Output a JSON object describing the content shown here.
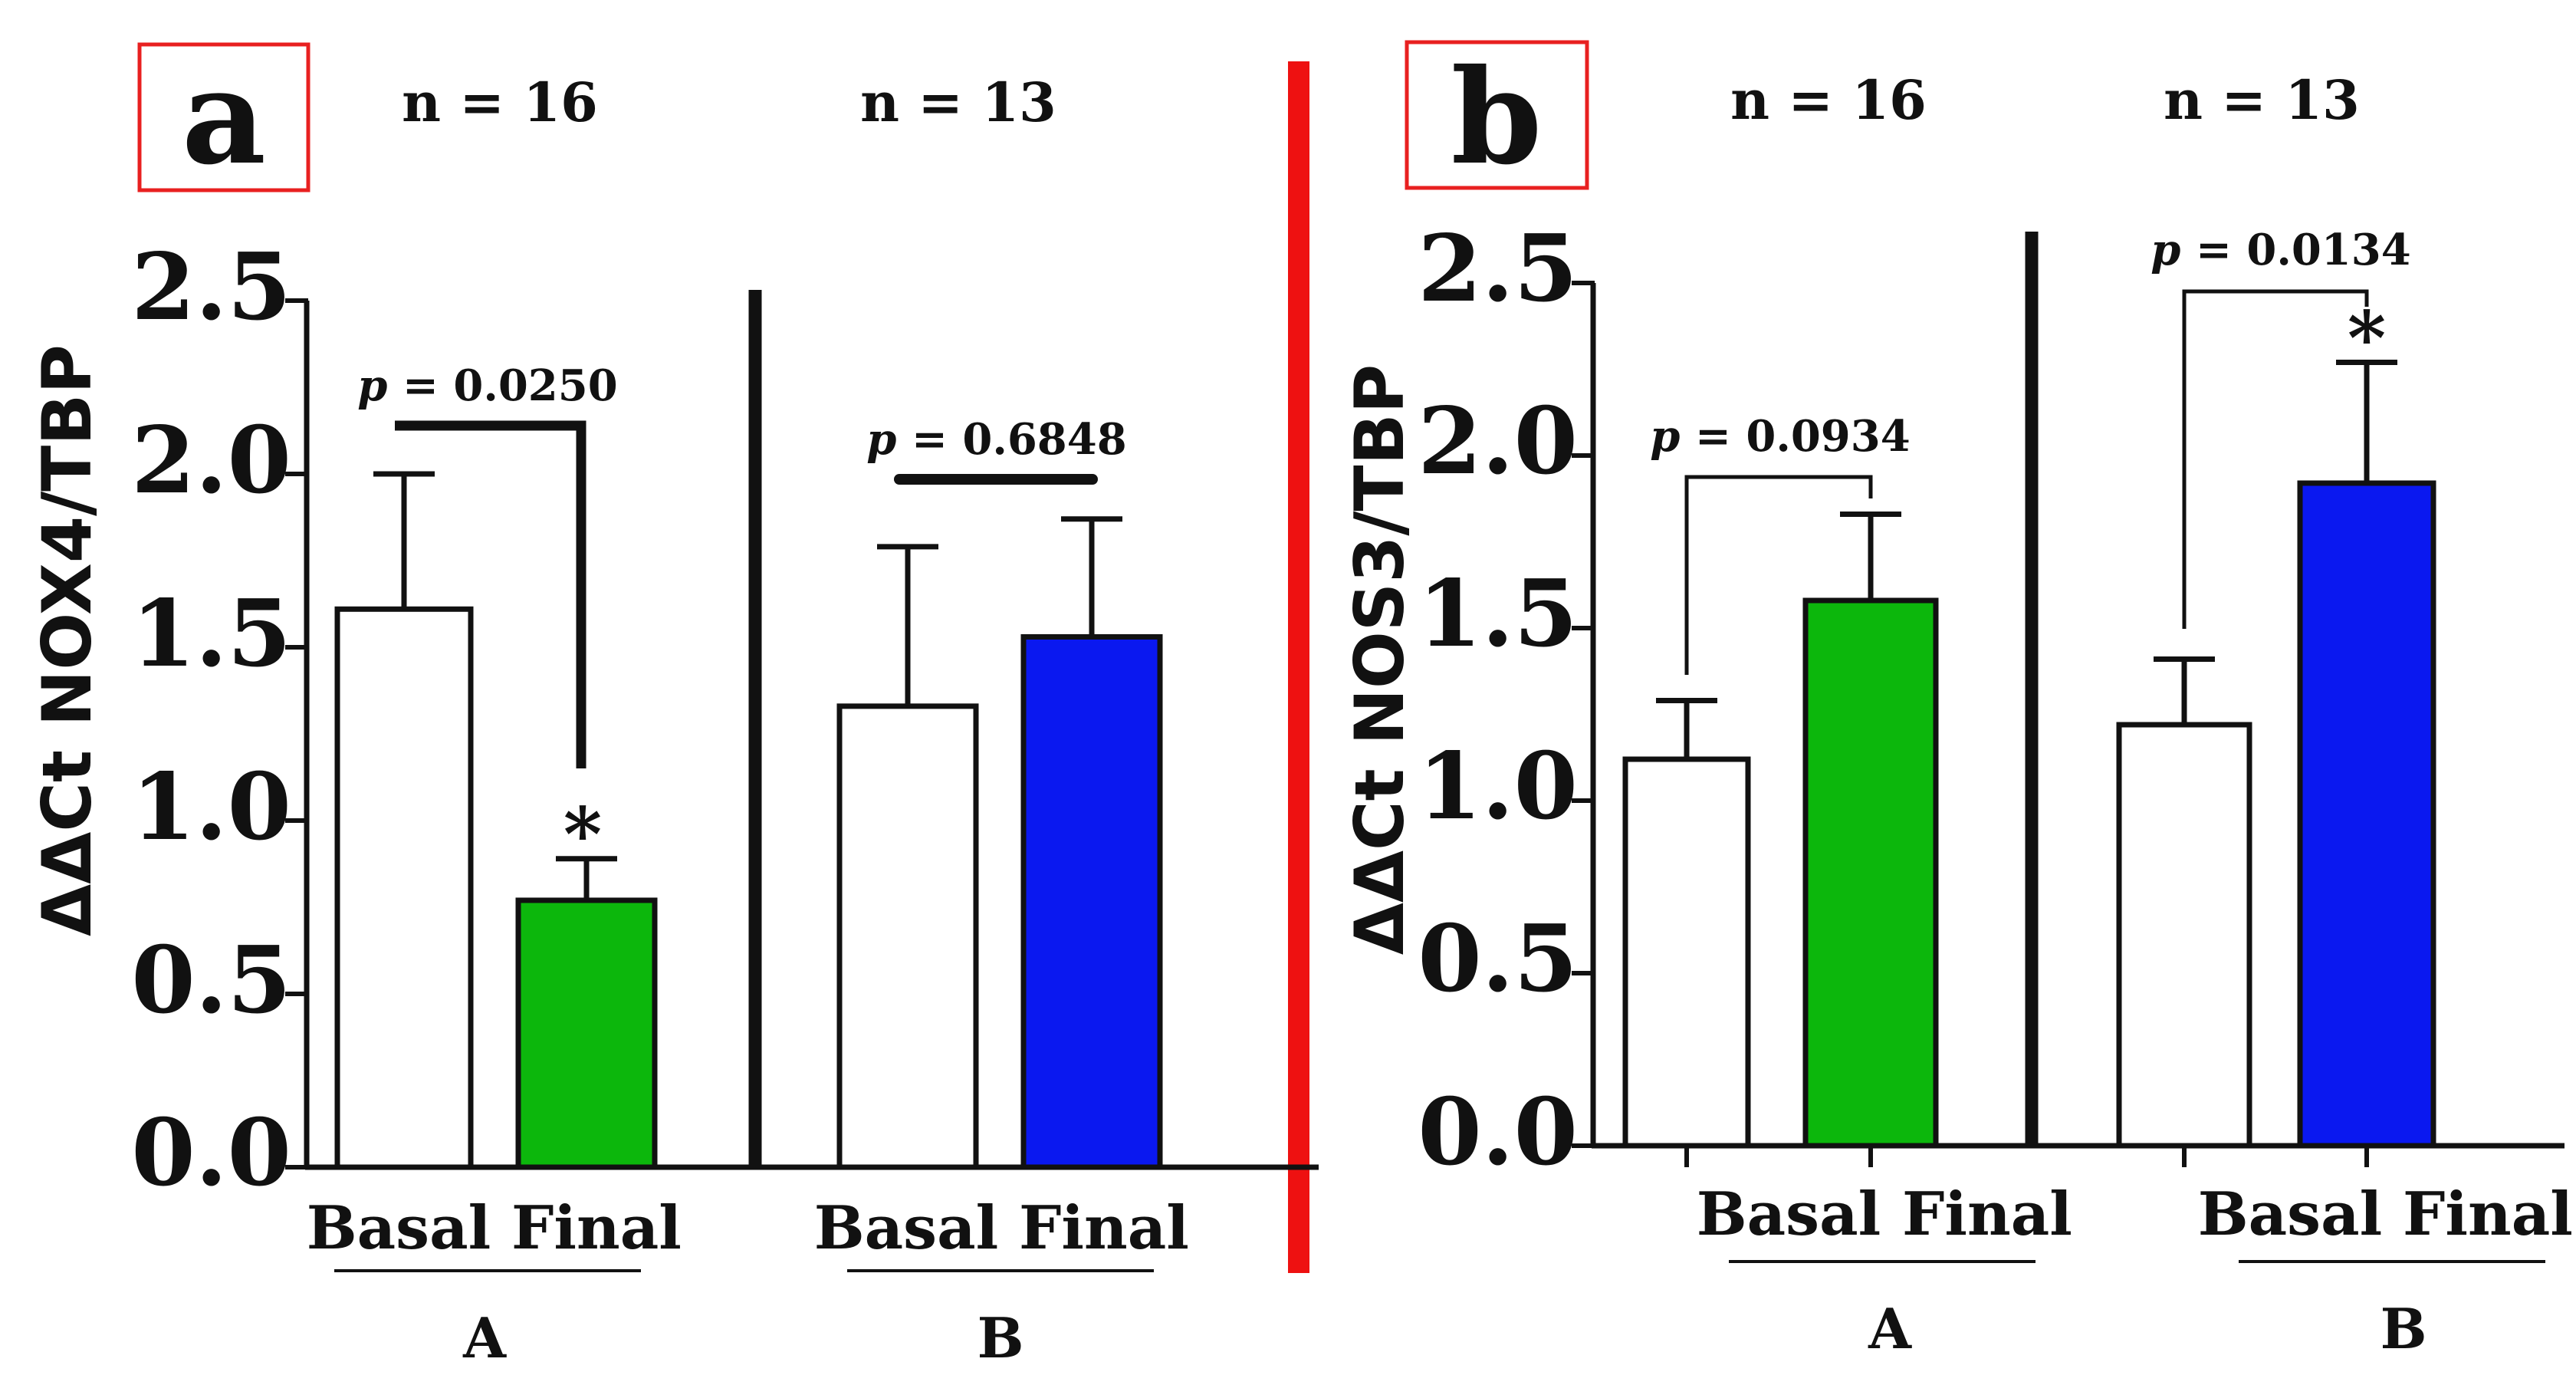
{
  "colors": {
    "divider": "#ee1111",
    "box_border": "#e82020",
    "label_text": "#e01a1a",
    "axis": "#111111",
    "white_bar": "#ffffff",
    "green_bar": "#0cb70c",
    "blue_bar": "#0a18f0"
  },
  "chart_data": [
    {
      "type": "bar",
      "panel_label": "a",
      "ylabel": "ΔΔCt NOX4/TBP",
      "ylim": [
        0,
        2.5
      ],
      "yticks": [
        "0.0",
        "0.5",
        "1.0",
        "1.5",
        "2.0",
        "2.5"
      ],
      "groups": [
        {
          "name": "A",
          "n_label": "n = 16",
          "bars": [
            {
              "label": "Basal",
              "value": 1.61,
              "error": 0.39,
              "color": "white"
            },
            {
              "label": "Final",
              "value": 0.77,
              "error": 0.12,
              "color": "green",
              "star": "*"
            }
          ],
          "pvalue": {
            "label": "p = 0.0250",
            "prefix": "p",
            "value": "= 0.0250"
          }
        },
        {
          "name": "B",
          "n_label": "n = 13",
          "bars": [
            {
              "label": "Basal",
              "value": 1.33,
              "error": 0.46,
              "color": "white"
            },
            {
              "label": "Final",
              "value": 1.53,
              "error": 0.34,
              "color": "blue"
            }
          ],
          "pvalue": {
            "label": "p = 0.6848",
            "prefix": "p",
            "value": "= 0.6848"
          }
        }
      ]
    },
    {
      "type": "bar",
      "panel_label": "b",
      "ylabel": "ΔΔCt NOS3/TBP",
      "ylim": [
        0,
        2.5
      ],
      "yticks": [
        "0.0",
        "0.5",
        "1.0",
        "1.5",
        "2.0",
        "2.5"
      ],
      "groups": [
        {
          "name": "A",
          "n_label": "n = 16",
          "bars": [
            {
              "label": "Basal",
              "value": 1.12,
              "error": 0.17,
              "color": "white"
            },
            {
              "label": "Final",
              "value": 1.58,
              "error": 0.25,
              "color": "green"
            }
          ],
          "pvalue": {
            "label": "p = 0.0934",
            "prefix": "p",
            "value": "= 0.0934"
          }
        },
        {
          "name": "B",
          "n_label": "n = 13",
          "bars": [
            {
              "label": "Basal",
              "value": 1.22,
              "error": 0.19,
              "color": "white"
            },
            {
              "label": "Final",
              "value": 1.92,
              "error": 0.35,
              "color": "blue",
              "star": "*"
            }
          ],
          "pvalue": {
            "label": "p = 0.0134",
            "prefix": "p",
            "value": "= 0.0134"
          }
        }
      ]
    }
  ]
}
